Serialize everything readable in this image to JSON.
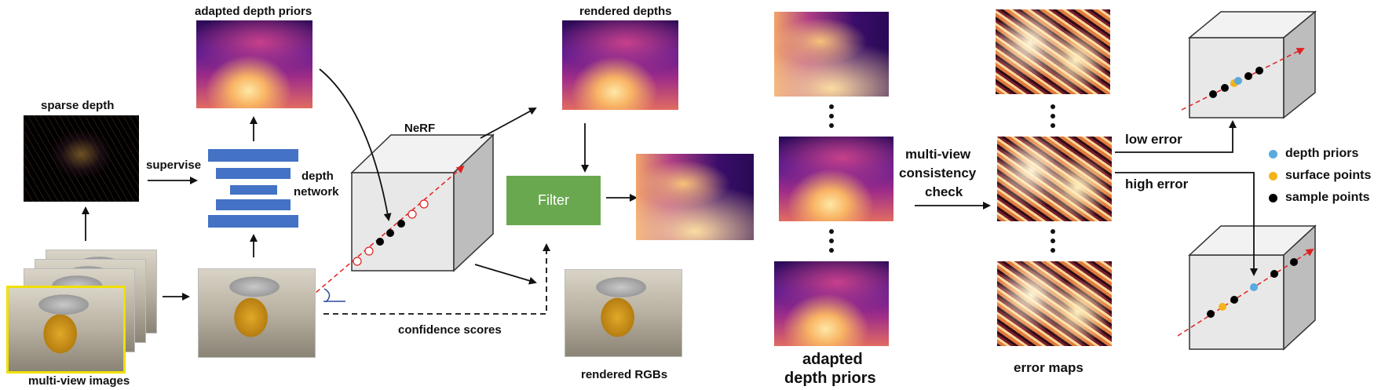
{
  "labels": {
    "adapted_depth_priors_top": "adapted depth priors",
    "rendered_depths": "rendered depths",
    "sparse_depth": "sparse depth",
    "supervise": "supervise",
    "depth_network_line1": "depth",
    "depth_network_line2": "network",
    "nerf": "NeRF",
    "filter": "Filter",
    "confidence_scores": "confidence scores",
    "multi_view_images": "multi-view images",
    "rendered_rgbs": "rendered RGBs",
    "mvc_line1": "multi-view",
    "mvc_line2": "consistency",
    "mvc_line3": "check",
    "adapted_bottom_line1": "adapted",
    "adapted_bottom_line2": "depth priors",
    "error_maps": "error maps",
    "low_error": "low error",
    "high_error": "high error"
  },
  "legend": [
    {
      "label": "depth priors",
      "color": "#5aa9e0"
    },
    {
      "label": "surface points",
      "color": "#f4b41a"
    },
    {
      "label": "sample points",
      "color": "#000000"
    }
  ],
  "colors": {
    "filter_box": "#6aa84f",
    "network_bars": "#4472c4",
    "ray": "#e02020",
    "cube_face": "#e6e6e6",
    "cube_side": "#bdbdbd"
  }
}
